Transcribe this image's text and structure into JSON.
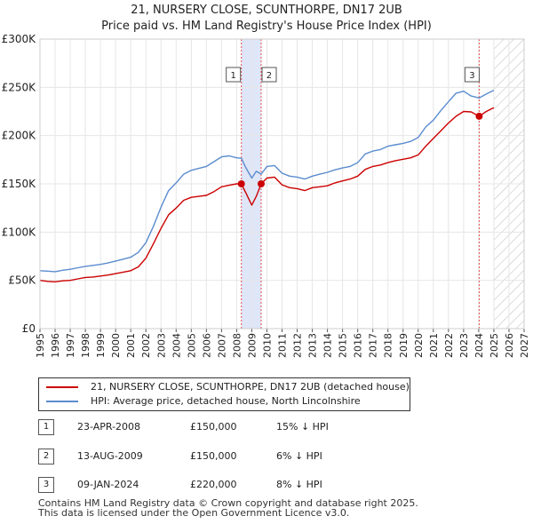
{
  "title_line1": "21, NURSERY CLOSE, SCUNTHORPE, DN17 2UB",
  "title_line2": "Price paid vs. HM Land Registry's House Price Index (HPI)",
  "colors": {
    "property": "#cc0000",
    "hpi": "#5b8ccf",
    "band": "#dfe6f7",
    "hatch": "#bbbbbb",
    "vline": "#e05050"
  },
  "chart_data": {
    "type": "line",
    "title": "Price paid vs. HM Land Registry's House Price Index (HPI)",
    "xlim": [
      1995,
      2027
    ],
    "ylim": [
      0,
      300000
    ],
    "x_ticks": [
      "1995",
      "1996",
      "1997",
      "1998",
      "1999",
      "2000",
      "2001",
      "2002",
      "2003",
      "2004",
      "2005",
      "2006",
      "2007",
      "2008",
      "2009",
      "2010",
      "2011",
      "2012",
      "2013",
      "2014",
      "2015",
      "2016",
      "2017",
      "2018",
      "2019",
      "2020",
      "2021",
      "2022",
      "2023",
      "2024",
      "2025",
      "2026",
      "2027"
    ],
    "y_ticks": [
      {
        "value": 0,
        "label": "£0"
      },
      {
        "value": 50000,
        "label": "£50K"
      },
      {
        "value": 100000,
        "label": "£100K"
      },
      {
        "value": 150000,
        "label": "£150K"
      },
      {
        "value": 200000,
        "label": "£200K"
      },
      {
        "value": 250000,
        "label": "£250K"
      },
      {
        "value": 300000,
        "label": "£300K"
      }
    ],
    "future_hatch_from": 2025.0,
    "shaded_band": [
      2008.31,
      2009.62
    ],
    "series": [
      {
        "name": "21, NURSERY CLOSE, SCUNTHORPE, DN17 2UB (detached house)",
        "x": [
          1995,
          1995.5,
          1996,
          1996.5,
          1997,
          1997.5,
          1998,
          1998.5,
          1999,
          1999.5,
          2000,
          2000.5,
          2001,
          2001.5,
          2002,
          2002.5,
          2003,
          2003.5,
          2004,
          2004.5,
          2005,
          2005.5,
          2006,
          2006.5,
          2007,
          2007.5,
          2008,
          2008.31,
          2008.6,
          2009,
          2009.3,
          2009.62,
          2010,
          2010.5,
          2011,
          2011.5,
          2012,
          2012.5,
          2013,
          2013.5,
          2014,
          2014.5,
          2015,
          2015.5,
          2016,
          2016.5,
          2017,
          2017.5,
          2018,
          2018.5,
          2019,
          2019.5,
          2020,
          2020.5,
          2021,
          2021.5,
          2022,
          2022.5,
          2023,
          2023.5,
          2024.03,
          2024.5,
          2025
        ],
        "values": [
          50000,
          49000,
          48500,
          49500,
          50000,
          51500,
          53000,
          53500,
          54500,
          55500,
          57000,
          58500,
          60000,
          64000,
          73000,
          88000,
          104000,
          118000,
          125000,
          133000,
          136000,
          137000,
          138000,
          142000,
          147000,
          148500,
          150000,
          150000,
          141000,
          128000,
          137000,
          150000,
          156000,
          157000,
          149000,
          146000,
          145000,
          143000,
          146000,
          147000,
          148000,
          151000,
          153000,
          155000,
          158000,
          165000,
          168000,
          169500,
          172000,
          174000,
          175500,
          177000,
          180000,
          189000,
          197000,
          205000,
          213000,
          220000,
          225000,
          224500,
          220000,
          225000,
          229000
        ]
      },
      {
        "name": "HPI: Average price, detached house, North Lincolnshire",
        "x": [
          1995,
          1995.5,
          1996,
          1996.5,
          1997,
          1997.5,
          1998,
          1998.5,
          1999,
          1999.5,
          2000,
          2000.5,
          2001,
          2001.5,
          2002,
          2002.5,
          2003,
          2003.5,
          2004,
          2004.5,
          2005,
          2005.5,
          2006,
          2006.5,
          2007,
          2007.5,
          2008,
          2008.31,
          2008.6,
          2009,
          2009.3,
          2009.62,
          2010,
          2010.5,
          2011,
          2011.5,
          2012,
          2012.5,
          2013,
          2013.5,
          2014,
          2014.5,
          2015,
          2015.5,
          2016,
          2016.5,
          2017,
          2017.5,
          2018,
          2018.5,
          2019,
          2019.5,
          2020,
          2020.5,
          2021,
          2021.5,
          2022,
          2022.5,
          2023,
          2023.5,
          2024.03,
          2024.5,
          2025
        ],
        "values": [
          60000,
          59500,
          59000,
          60500,
          61500,
          63000,
          64500,
          65500,
          66500,
          68000,
          70000,
          72000,
          74000,
          79000,
          89000,
          106000,
          126000,
          143000,
          151000,
          160000,
          164000,
          166000,
          168000,
          173000,
          178000,
          179000,
          177000,
          176500,
          167000,
          156000,
          163000,
          160000,
          168000,
          169000,
          161000,
          158000,
          157000,
          155000,
          158000,
          160000,
          162000,
          164500,
          166500,
          168000,
          172000,
          181000,
          184000,
          185500,
          189000,
          190500,
          192000,
          194000,
          198000,
          209000,
          216000,
          226000,
          235000,
          244000,
          246000,
          241000,
          239000,
          243000,
          247000
        ]
      }
    ],
    "sale_markers": [
      {
        "label": "1",
        "x": 2008.31,
        "y": 150000
      },
      {
        "label": "2",
        "x": 2009.62,
        "y": 150000
      },
      {
        "label": "3",
        "x": 2024.03,
        "y": 220000
      }
    ]
  },
  "legend": {
    "property_label": "21, NURSERY CLOSE, SCUNTHORPE, DN17 2UB (detached house)",
    "hpi_label": "HPI: Average price, detached house, North Lincolnshire"
  },
  "sales": [
    {
      "num": "1",
      "date": "23-APR-2008",
      "price": "£150,000",
      "hpi": "15% ↓ HPI"
    },
    {
      "num": "2",
      "date": "13-AUG-2009",
      "price": "£150,000",
      "hpi": "6% ↓ HPI"
    },
    {
      "num": "3",
      "date": "09-JAN-2024",
      "price": "£220,000",
      "hpi": "8% ↓ HPI"
    }
  ],
  "footer": {
    "line1": "Contains HM Land Registry data © Crown copyright and database right 2025.",
    "line2": "This data is licensed under the Open Government Licence v3.0."
  }
}
